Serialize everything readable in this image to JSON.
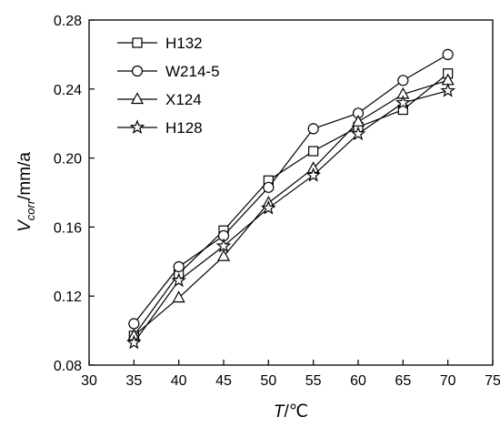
{
  "chart_data": {
    "type": "line",
    "x": [
      35,
      40,
      45,
      50,
      55,
      60,
      65,
      70
    ],
    "xlim": [
      30,
      75
    ],
    "ylim": [
      0.08,
      0.28
    ],
    "xticks": [
      30,
      35,
      40,
      45,
      50,
      55,
      60,
      65,
      70,
      75
    ],
    "yticks": [
      0.08,
      0.12,
      0.16,
      0.2,
      0.24,
      0.28
    ],
    "ytick_labels": [
      "0.08",
      "0.12",
      "0.16",
      "0.20",
      "0.24",
      "0.28"
    ],
    "xlabel": {
      "var": "T",
      "unit": "/℃"
    },
    "ylabel": {
      "var": "V",
      "sub": "corr",
      "unit": "/mm/a"
    },
    "legend_position": "top-left",
    "grid": false,
    "series": [
      {
        "name": "H132",
        "marker": "square",
        "values": [
          0.097,
          0.133,
          0.158,
          0.187,
          0.204,
          0.218,
          0.228,
          0.249
        ]
      },
      {
        "name": "W214-5",
        "marker": "circle",
        "values": [
          0.104,
          0.137,
          0.155,
          0.183,
          0.217,
          0.226,
          0.245,
          0.26
        ]
      },
      {
        "name": "X124",
        "marker": "triangle",
        "values": [
          0.097,
          0.119,
          0.143,
          0.174,
          0.194,
          0.221,
          0.237,
          0.245
        ]
      },
      {
        "name": "H128",
        "marker": "star",
        "values": [
          0.093,
          0.129,
          0.149,
          0.171,
          0.19,
          0.214,
          0.232,
          0.239
        ]
      }
    ]
  }
}
